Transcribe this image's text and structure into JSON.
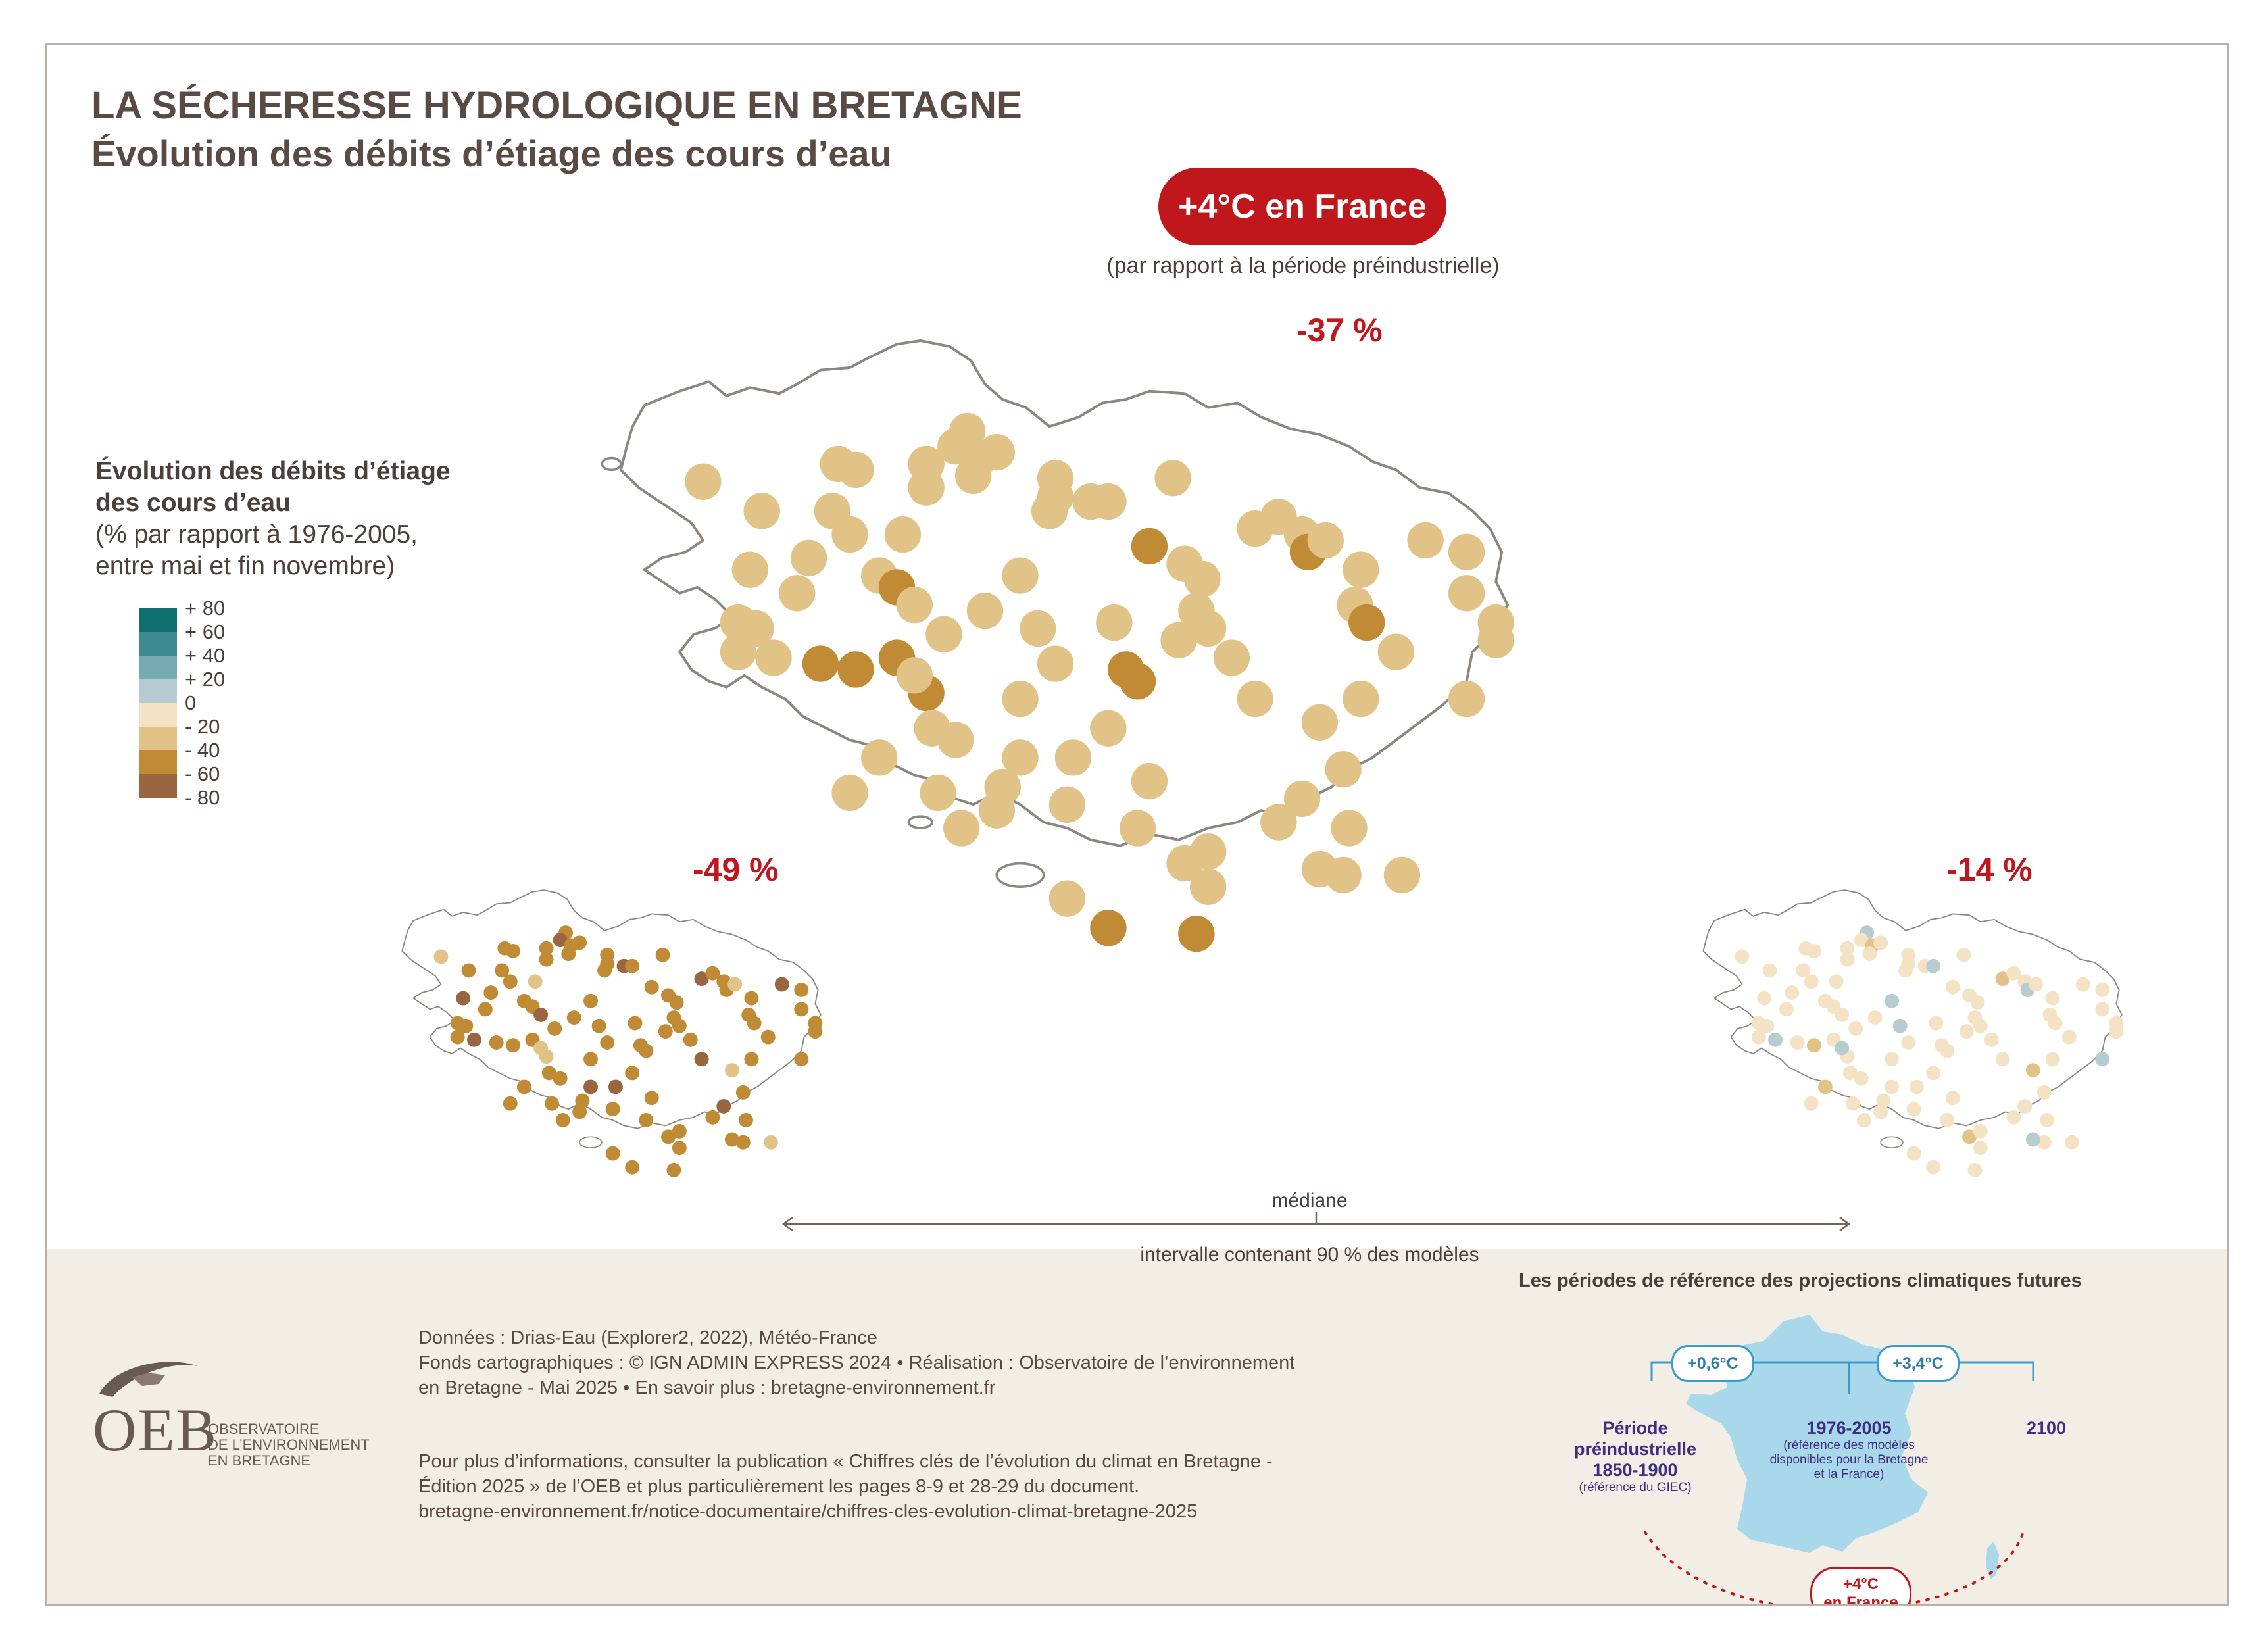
{
  "header": {
    "title": "LA SÉCHERESSE HYDROLOGIQUE EN BRETAGNE",
    "subtitle": "Évolution des débits d’étiage des cours d’eau"
  },
  "scenario": {
    "label": "+4°C en France",
    "note": "(par rapport à la période préindustrielle)"
  },
  "maps": {
    "median_value": "-37 %",
    "low_value": "-49 %",
    "high_value": "-14 %"
  },
  "legend": {
    "title_lines": [
      "Évolution des débits d’étiage",
      "des cours d’eau"
    ],
    "subtitle_lines": [
      "(% par rapport à 1976-2005,",
      "entre mai et fin novembre)"
    ],
    "ticks": [
      "+ 80",
      "+ 60",
      "+ 40",
      "+ 20",
      "0",
      "- 20",
      "- 40",
      "- 60",
      "- 80"
    ],
    "colors": [
      "#0f6e6e",
      "#3d8a90",
      "#77a9b2",
      "#b6ccd1",
      "#f4e2c5",
      "#e1c287",
      "#c18a35",
      "#9a6640"
    ]
  },
  "range": {
    "median_label": "médiane",
    "interval_label": "intervalle contenant 90 % des modèles"
  },
  "footer": {
    "credits_1": [
      "Données : Drias-Eau (Explorer2, 2022), Météo-France",
      "Fonds cartographiques : © IGN ADMIN EXPRESS 2024 • Réalisation : Observatoire de l’environnement",
      "en Bretagne - Mai 2025 • En savoir plus : bretagne-environnement.fr"
    ],
    "credits_2": [
      "Pour plus d’informations, consulter la publication « Chiffres clés de l’évolution du climat en Bretagne -",
      "Édition 2025 » de l’OEB et plus particulièrement les pages 8-9 et 28-29 du document.",
      "bretagne-environnement.fr/notice-documentaire/chiffres-cles-evolution-climat-bretagne-2025"
    ],
    "logo": {
      "mark": "OEB",
      "lines": [
        "OBSERVATOIRE",
        "DE L’ENVIRONNEMENT",
        "EN BRETAGNE"
      ]
    }
  },
  "periods": {
    "title": "Les périodes de référence des projections climatiques futures",
    "pill_left": "+0,6°C",
    "pill_right": "+3,4°C",
    "preindustrial": {
      "lines": [
        "Période",
        "préindustrielle",
        "1850-1900"
      ],
      "note": "(référence du GIEC)"
    },
    "reference": {
      "label": "1976-2005",
      "note_lines": [
        "(référence des modèles",
        "disponibles pour la Bretagne",
        "et la France)"
      ]
    },
    "future": "2100",
    "france_pill_lines": [
      "+4°C",
      "en France"
    ],
    "france_color": "#a8d8ea"
  }
}
